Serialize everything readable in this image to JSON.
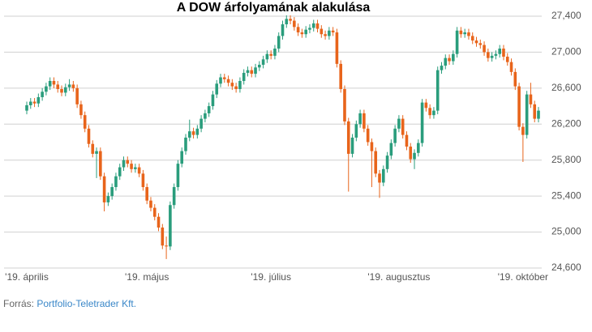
{
  "chart_data": {
    "type": "candlestick",
    "title": "A DOW árfolyamának alakulása",
    "categories": [
      "'19. április",
      null,
      null,
      null,
      null,
      null,
      null,
      null,
      null,
      null,
      null,
      null,
      null,
      null,
      null,
      null,
      null,
      null,
      null,
      null,
      null,
      null,
      null,
      null,
      null,
      null,
      null,
      null,
      null,
      null,
      null,
      "'19. május",
      null,
      null,
      null,
      null,
      null,
      null,
      null,
      null,
      null,
      null,
      null,
      null,
      null,
      null,
      null,
      null,
      null,
      null,
      null,
      null,
      null,
      null,
      null,
      null,
      null,
      null,
      null,
      null,
      null,
      null,
      null,
      "'19. július",
      null,
      null,
      null,
      null,
      null,
      null,
      null,
      null,
      null,
      null,
      null,
      null,
      null,
      null,
      null,
      null,
      null,
      null,
      null,
      null,
      null,
      null,
      null,
      null,
      null,
      null,
      null,
      null,
      null,
      null,
      null,
      null,
      "'19. augusztus",
      null,
      null,
      null,
      null,
      null,
      null,
      null,
      null,
      null,
      null,
      null,
      null,
      null,
      null,
      null,
      null,
      null,
      null,
      null,
      null,
      null,
      null,
      null,
      null,
      null,
      null,
      null,
      null,
      null,
      null,
      null,
      "'19. október",
      null,
      null,
      null,
      null
    ],
    "open": [
      26350,
      26410,
      26450,
      26430,
      26500,
      26560,
      26620,
      26680,
      26640,
      26590,
      26550,
      26610,
      26640,
      26600,
      26420,
      26300,
      26150,
      25980,
      25870,
      25900,
      25620,
      25330,
      25400,
      25500,
      25620,
      25720,
      25800,
      25760,
      25700,
      25720,
      25650,
      25500,
      25350,
      25270,
      25170,
      25050,
      24850,
      24840,
      25300,
      25500,
      25760,
      25900,
      26050,
      26120,
      26080,
      26150,
      26260,
      26320,
      26400,
      26530,
      26650,
      26720,
      26700,
      26660,
      26620,
      26590,
      26680,
      26770,
      26800,
      26760,
      26830,
      26860,
      26920,
      26980,
      26960,
      27040,
      27180,
      27310,
      27370,
      27350,
      27280,
      27220,
      27200,
      27250,
      27270,
      27320,
      27260,
      27200,
      27180,
      27240,
      27220,
      26870,
      26590,
      26230,
      25870,
      26050,
      26200,
      26320,
      26150,
      26000,
      25900,
      25650,
      25550,
      25700,
      25850,
      25990,
      26150,
      26260,
      26080,
      25950,
      25810,
      25880,
      25990,
      26440,
      26380,
      26300,
      26350,
      26800,
      26850,
      26935,
      26900,
      26980,
      27240,
      27200,
      27220,
      27180,
      27130,
      27100,
      27080,
      27000,
      26935,
      26960,
      26980,
      27040,
      26950,
      26890,
      26780,
      26620,
      26170,
      26080,
      26530,
      26420,
      26260
    ],
    "high": [
      26450,
      26490,
      26490,
      26540,
      26600,
      26660,
      26720,
      26720,
      26680,
      26630,
      26650,
      26700,
      26680,
      26640,
      26460,
      26340,
      26190,
      26020,
      25940,
      25940,
      25660,
      25440,
      25540,
      25660,
      25760,
      25840,
      25840,
      25800,
      25760,
      25760,
      25690,
      25540,
      25390,
      25310,
      25210,
      25090,
      24950,
      25340,
      25540,
      25800,
      25940,
      26090,
      26250,
      26160,
      26190,
      26300,
      26360,
      26440,
      26570,
      26690,
      26760,
      26760,
      26740,
      26700,
      26660,
      26720,
      26810,
      26840,
      26840,
      26870,
      26900,
      26960,
      27020,
      27020,
      27080,
      27220,
      27350,
      27410,
      27410,
      27390,
      27320,
      27260,
      27290,
      27310,
      27360,
      27360,
      27300,
      27240,
      27280,
      27280,
      27260,
      26910,
      26630,
      26270,
      26090,
      26240,
      26360,
      26360,
      26190,
      26040,
      25940,
      25690,
      25740,
      25890,
      26030,
      26190,
      26300,
      26300,
      26120,
      25990,
      25920,
      26030,
      26480,
      26480,
      26420,
      26390,
      26840,
      26890,
      26975,
      26975,
      27020,
      27280,
      27280,
      27260,
      27260,
      27220,
      27170,
      27140,
      27120,
      27040,
      27000,
      27020,
      27080,
      27080,
      26990,
      26930,
      26820,
      26660,
      26210,
      26570,
      26660,
      26460,
      26390
    ],
    "low": [
      26310,
      26370,
      26390,
      26390,
      26460,
      26520,
      26580,
      26600,
      26550,
      26510,
      26510,
      26570,
      26560,
      26380,
      26260,
      26110,
      25940,
      25830,
      25600,
      25580,
      25230,
      25290,
      25360,
      25460,
      25580,
      25680,
      25720,
      25660,
      25660,
      25610,
      25460,
      25310,
      25230,
      25130,
      25010,
      24810,
      24700,
      24800,
      25260,
      25460,
      25720,
      25860,
      26010,
      26040,
      26040,
      26110,
      26220,
      26280,
      26360,
      26490,
      26610,
      26660,
      26620,
      26580,
      26550,
      26550,
      26640,
      26730,
      26720,
      26720,
      26790,
      26820,
      26880,
      26920,
      26920,
      27000,
      27140,
      27270,
      27310,
      27240,
      27180,
      27160,
      27160,
      27210,
      27230,
      27220,
      27160,
      27140,
      27140,
      27180,
      26830,
      26550,
      26190,
      25450,
      25830,
      26010,
      26160,
      26110,
      25960,
      25500,
      25610,
      25380,
      25510,
      25660,
      25810,
      25950,
      26110,
      26040,
      25910,
      25770,
      25700,
      25840,
      25950,
      26340,
      26260,
      26260,
      26310,
      26760,
      26810,
      26860,
      26860,
      26940,
      27160,
      27160,
      27140,
      27090,
      27060,
      27040,
      26960,
      26895,
      26895,
      26920,
      26940,
      26910,
      26850,
      26740,
      26580,
      26130,
      25780,
      26040,
      26380,
      26220,
      26220
    ],
    "close": [
      26410,
      26450,
      26430,
      26500,
      26560,
      26620,
      26680,
      26640,
      26590,
      26550,
      26610,
      26640,
      26600,
      26420,
      26300,
      26150,
      25980,
      25870,
      25900,
      25620,
      25330,
      25400,
      25500,
      25620,
      25720,
      25800,
      25760,
      25700,
      25720,
      25650,
      25500,
      25350,
      25270,
      25170,
      25050,
      24850,
      24840,
      25300,
      25500,
      25760,
      25900,
      26050,
      26120,
      26080,
      26150,
      26260,
      26320,
      26400,
      26530,
      26650,
      26720,
      26700,
      26660,
      26620,
      26590,
      26680,
      26770,
      26800,
      26760,
      26830,
      26860,
      26920,
      26980,
      26960,
      27040,
      27180,
      27310,
      27370,
      27350,
      27280,
      27220,
      27200,
      27250,
      27270,
      27320,
      27260,
      27200,
      27180,
      27240,
      27220,
      26870,
      26590,
      26230,
      25870,
      26050,
      26200,
      26320,
      26150,
      26000,
      25900,
      25650,
      25550,
      25700,
      25850,
      25990,
      26150,
      26260,
      26080,
      25950,
      25810,
      25880,
      25990,
      26440,
      26380,
      26300,
      26350,
      26800,
      26850,
      26935,
      26900,
      26980,
      27240,
      27200,
      27220,
      27180,
      27130,
      27100,
      27080,
      27000,
      26935,
      26960,
      26980,
      27040,
      26950,
      26890,
      26780,
      26620,
      26170,
      26080,
      26530,
      26420,
      26260,
      26350
    ],
    "up_color": "#2a9d7c",
    "down_color": "#e8641b",
    "ylim": [
      24600,
      27400
    ],
    "yticks": [
      {
        "value": 24600,
        "label": "24,600"
      },
      {
        "value": 25000,
        "label": "25,000"
      },
      {
        "value": 25400,
        "label": "25,400"
      },
      {
        "value": 25800,
        "label": "25,800"
      },
      {
        "value": 26200,
        "label": "26,200"
      },
      {
        "value": 26600,
        "label": "26,600"
      },
      {
        "value": 27000,
        "label": "27,000"
      },
      {
        "value": 27400,
        "label": "27,400"
      }
    ],
    "grid": true,
    "source": {
      "label": "Forrás:",
      "text": "Portfolio-Teletrader Kft."
    }
  }
}
